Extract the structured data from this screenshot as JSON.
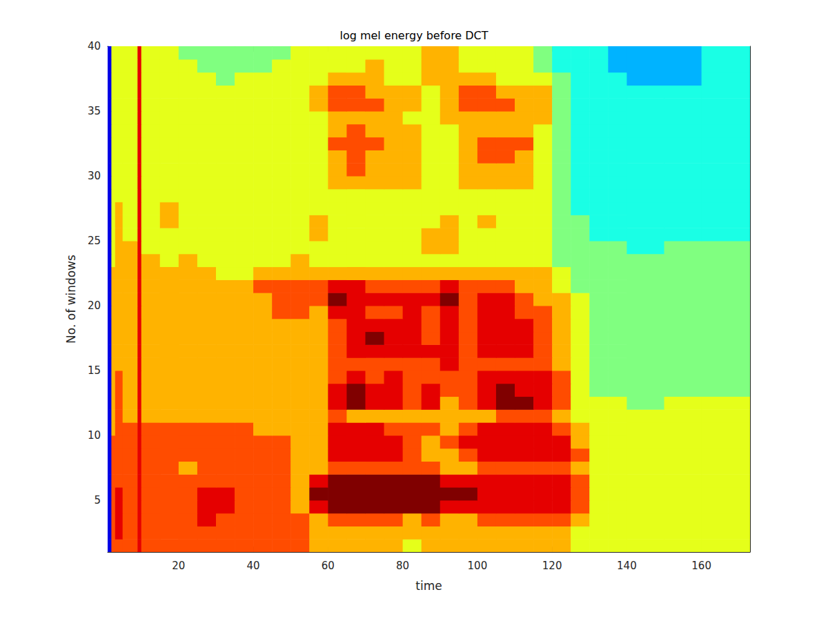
{
  "chart_data": {
    "type": "heatmap",
    "title": "log mel energy before DCT",
    "x_label": "time",
    "y_label": "No. of windows",
    "color": "jet",
    "xlim": [
      1,
      173
    ],
    "ylim": [
      1,
      40
    ],
    "xticks": [
      20,
      40,
      60,
      80,
      100,
      120,
      140,
      160
    ],
    "yticks": [
      5,
      10,
      15,
      20,
      25,
      30,
      35,
      40
    ],
    "color_range": [
      0,
      10
    ],
    "x_edges": [
      1,
      2,
      3,
      5,
      9,
      10,
      15,
      20,
      25,
      30,
      35,
      40,
      45,
      50,
      55,
      60,
      65,
      70,
      75,
      80,
      85,
      90,
      95,
      100,
      105,
      110,
      115,
      120,
      125,
      130,
      135,
      140,
      150,
      160,
      173
    ],
    "y_edges": [
      1,
      2,
      3,
      4,
      5,
      6,
      7,
      8,
      9,
      10,
      11,
      12,
      13,
      14,
      15,
      16,
      17,
      18,
      19,
      20,
      21,
      22,
      23,
      24,
      25,
      26,
      27,
      28,
      29,
      30,
      31,
      32,
      33,
      34,
      35,
      36,
      37,
      38,
      39,
      40
    ],
    "cells": [
      [
        1,
        8,
        8,
        8,
        9,
        8,
        8,
        8,
        8,
        8,
        8,
        8,
        8,
        8,
        7,
        7,
        7,
        7,
        7,
        6,
        7,
        7,
        7,
        7,
        7,
        7,
        7,
        7,
        6,
        6,
        6,
        6,
        6,
        6
      ],
      [
        1,
        8,
        9,
        8,
        9,
        8,
        8,
        8,
        8,
        8,
        8,
        8,
        8,
        8,
        7,
        7,
        7,
        7,
        7,
        7,
        7,
        7,
        7,
        7,
        7,
        7,
        7,
        7,
        6,
        6,
        6,
        6,
        6,
        6
      ],
      [
        1,
        8,
        9,
        8,
        9,
        8,
        8,
        8,
        9,
        8,
        8,
        8,
        8,
        8,
        7,
        8,
        8,
        8,
        8,
        7,
        8,
        7,
        7,
        8,
        8,
        8,
        8,
        8,
        7,
        6,
        6,
        6,
        6,
        6
      ],
      [
        1,
        8,
        9,
        8,
        9,
        8,
        8,
        8,
        9,
        9,
        8,
        8,
        8,
        7,
        9,
        10,
        10,
        10,
        10,
        10,
        10,
        9,
        9,
        9,
        9,
        9,
        9,
        9,
        8,
        6,
        6,
        6,
        6,
        6
      ],
      [
        1,
        8,
        9,
        8,
        9,
        8,
        8,
        8,
        9,
        9,
        8,
        8,
        8,
        7,
        10,
        10,
        10,
        10,
        10,
        10,
        10,
        10,
        10,
        9,
        9,
        9,
        9,
        9,
        8,
        6,
        6,
        6,
        6,
        6
      ],
      [
        1,
        8,
        8,
        8,
        9,
        8,
        8,
        8,
        8,
        8,
        8,
        8,
        8,
        7,
        9,
        10,
        10,
        10,
        10,
        10,
        10,
        9,
        9,
        9,
        9,
        9,
        9,
        9,
        8,
        6,
        6,
        6,
        6,
        6
      ],
      [
        1,
        8,
        8,
        8,
        9,
        8,
        8,
        7,
        8,
        8,
        8,
        8,
        8,
        7,
        7,
        8,
        8,
        8,
        8,
        8,
        8,
        7,
        7,
        8,
        8,
        8,
        8,
        8,
        7,
        6,
        6,
        6,
        6,
        6
      ],
      [
        1,
        8,
        8,
        8,
        9,
        8,
        8,
        8,
        8,
        8,
        8,
        8,
        8,
        7,
        7,
        9,
        9,
        9,
        9,
        8,
        7,
        7,
        8,
        9,
        9,
        9,
        9,
        9,
        8,
        6,
        6,
        6,
        6,
        6
      ],
      [
        1,
        8,
        8,
        8,
        9,
        8,
        8,
        8,
        8,
        8,
        8,
        8,
        8,
        7,
        7,
        9,
        9,
        9,
        9,
        8,
        7,
        8,
        9,
        9,
        9,
        9,
        9,
        9,
        7,
        6,
        6,
        6,
        6,
        6
      ],
      [
        1,
        7,
        8,
        8,
        9,
        8,
        8,
        8,
        8,
        8,
        8,
        7,
        7,
        7,
        7,
        9,
        9,
        9,
        8,
        8,
        8,
        7,
        8,
        9,
        9,
        9,
        9,
        8,
        7,
        6,
        6,
        6,
        6,
        6
      ],
      [
        1,
        7,
        8,
        7,
        9,
        7,
        7,
        7,
        7,
        7,
        7,
        7,
        7,
        7,
        7,
        8,
        7,
        7,
        7,
        7,
        7,
        7,
        7,
        7,
        8,
        8,
        8,
        7,
        6,
        6,
        6,
        6,
        6,
        6
      ],
      [
        1,
        7,
        8,
        7,
        9,
        7,
        7,
        7,
        7,
        7,
        7,
        7,
        7,
        7,
        7,
        9,
        10,
        9,
        9,
        8,
        9,
        7,
        8,
        9,
        10,
        10,
        9,
        8,
        6,
        6,
        6,
        5,
        6,
        6
      ],
      [
        1,
        7,
        8,
        7,
        9,
        7,
        7,
        7,
        7,
        7,
        7,
        7,
        7,
        7,
        7,
        9,
        10,
        9,
        9,
        8,
        9,
        8,
        8,
        9,
        10,
        9,
        9,
        8,
        6,
        5,
        5,
        5,
        5,
        5
      ],
      [
        1,
        7,
        8,
        7,
        9,
        7,
        7,
        7,
        7,
        7,
        7,
        7,
        7,
        7,
        7,
        8,
        9,
        8,
        9,
        8,
        8,
        8,
        8,
        9,
        9,
        9,
        9,
        8,
        6,
        5,
        5,
        5,
        5,
        5
      ],
      [
        1,
        7,
        7,
        7,
        9,
        7,
        7,
        7,
        7,
        7,
        7,
        7,
        7,
        7,
        7,
        8,
        8,
        8,
        8,
        8,
        8,
        9,
        8,
        8,
        8,
        8,
        8,
        7,
        6,
        5,
        5,
        5,
        5,
        5
      ],
      [
        1,
        7,
        7,
        7,
        9,
        7,
        7,
        7,
        7,
        7,
        7,
        7,
        7,
        7,
        7,
        8,
        9,
        9,
        9,
        9,
        9,
        9,
        8,
        9,
        9,
        9,
        8,
        7,
        6,
        5,
        5,
        5,
        5,
        5
      ],
      [
        1,
        7,
        7,
        7,
        9,
        7,
        7,
        7,
        7,
        7,
        7,
        7,
        7,
        7,
        7,
        8,
        9,
        10,
        9,
        9,
        8,
        9,
        8,
        9,
        9,
        9,
        8,
        7,
        6,
        5,
        5,
        5,
        5,
        5
      ],
      [
        1,
        7,
        7,
        7,
        9,
        7,
        7,
        7,
        7,
        7,
        7,
        7,
        7,
        7,
        7,
        8,
        9,
        9,
        9,
        9,
        8,
        9,
        8,
        9,
        9,
        9,
        8,
        7,
        6,
        5,
        5,
        5,
        5,
        5
      ],
      [
        1,
        7,
        7,
        7,
        9,
        7,
        7,
        7,
        7,
        7,
        7,
        7,
        8,
        8,
        7,
        9,
        9,
        8,
        8,
        9,
        8,
        9,
        8,
        9,
        9,
        8,
        8,
        7,
        6,
        5,
        5,
        5,
        5,
        5
      ],
      [
        1,
        7,
        7,
        7,
        9,
        7,
        7,
        7,
        7,
        7,
        7,
        7,
        8,
        8,
        8,
        10,
        9,
        9,
        9,
        9,
        9,
        10,
        8,
        9,
        9,
        8,
        7,
        7,
        6,
        5,
        5,
        5,
        5,
        5
      ],
      [
        1,
        7,
        7,
        7,
        9,
        7,
        7,
        7,
        7,
        7,
        7,
        8,
        8,
        8,
        8,
        9,
        9,
        8,
        8,
        8,
        8,
        9,
        8,
        8,
        8,
        7,
        7,
        6,
        5,
        5,
        5,
        5,
        5,
        5
      ],
      [
        1,
        7,
        7,
        7,
        9,
        7,
        7,
        7,
        7,
        6,
        6,
        7,
        7,
        7,
        7,
        7,
        7,
        7,
        7,
        7,
        7,
        7,
        7,
        7,
        7,
        7,
        7,
        6,
        5,
        5,
        5,
        5,
        5,
        5
      ],
      [
        1,
        6,
        7,
        7,
        9,
        7,
        6,
        7,
        6,
        6,
        6,
        6,
        6,
        7,
        6,
        6,
        6,
        6,
        6,
        6,
        6,
        6,
        6,
        6,
        6,
        6,
        6,
        5,
        5,
        5,
        5,
        5,
        5,
        5
      ],
      [
        1,
        6,
        7,
        7,
        9,
        6,
        6,
        6,
        6,
        6,
        6,
        6,
        6,
        6,
        6,
        6,
        6,
        6,
        6,
        6,
        7,
        7,
        6,
        6,
        6,
        6,
        6,
        5,
        5,
        5,
        5,
        4,
        5,
        5
      ],
      [
        1,
        6,
        7,
        6,
        9,
        6,
        6,
        6,
        6,
        6,
        6,
        6,
        6,
        6,
        7,
        6,
        6,
        6,
        6,
        6,
        7,
        7,
        6,
        6,
        6,
        6,
        6,
        5,
        5,
        4,
        4,
        4,
        4,
        4
      ],
      [
        1,
        6,
        7,
        6,
        9,
        6,
        7,
        6,
        6,
        6,
        6,
        6,
        6,
        6,
        7,
        6,
        6,
        6,
        6,
        6,
        6,
        7,
        6,
        7,
        6,
        6,
        6,
        5,
        5,
        4,
        4,
        4,
        4,
        4
      ],
      [
        1,
        6,
        7,
        6,
        9,
        6,
        7,
        6,
        6,
        6,
        6,
        6,
        6,
        6,
        6,
        6,
        6,
        6,
        6,
        6,
        6,
        6,
        6,
        6,
        6,
        6,
        6,
        5,
        4,
        4,
        4,
        4,
        4,
        4
      ],
      [
        1,
        6,
        6,
        6,
        9,
        6,
        6,
        6,
        6,
        6,
        6,
        6,
        6,
        6,
        6,
        6,
        6,
        6,
        6,
        6,
        6,
        6,
        6,
        6,
        6,
        6,
        6,
        5,
        4,
        4,
        4,
        4,
        4,
        4
      ],
      [
        1,
        6,
        6,
        6,
        9,
        6,
        6,
        6,
        6,
        6,
        6,
        6,
        6,
        6,
        6,
        7,
        7,
        7,
        7,
        7,
        6,
        6,
        7,
        7,
        7,
        7,
        6,
        5,
        4,
        4,
        4,
        4,
        4,
        4
      ],
      [
        1,
        6,
        6,
        6,
        9,
        6,
        6,
        6,
        6,
        6,
        6,
        6,
        6,
        6,
        6,
        7,
        8,
        7,
        7,
        7,
        6,
        6,
        7,
        7,
        7,
        7,
        6,
        5,
        4,
        4,
        4,
        4,
        4,
        4
      ],
      [
        1,
        6,
        6,
        6,
        9,
        6,
        6,
        6,
        6,
        6,
        6,
        6,
        6,
        6,
        6,
        7,
        8,
        7,
        7,
        7,
        6,
        6,
        7,
        8,
        8,
        7,
        6,
        5,
        4,
        4,
        4,
        4,
        4,
        4
      ],
      [
        1,
        6,
        6,
        6,
        9,
        6,
        6,
        6,
        6,
        6,
        6,
        6,
        6,
        6,
        6,
        8,
        8,
        8,
        7,
        7,
        6,
        6,
        7,
        8,
        8,
        8,
        6,
        5,
        4,
        4,
        4,
        4,
        4,
        4
      ],
      [
        1,
        6,
        6,
        6,
        9,
        6,
        6,
        6,
        6,
        6,
        6,
        6,
        6,
        6,
        6,
        7,
        8,
        7,
        7,
        7,
        6,
        6,
        7,
        7,
        7,
        7,
        6,
        5,
        4,
        4,
        4,
        4,
        4,
        4
      ],
      [
        1,
        6,
        6,
        6,
        9,
        6,
        6,
        6,
        6,
        6,
        6,
        6,
        6,
        6,
        6,
        7,
        7,
        7,
        7,
        6,
        6,
        7,
        7,
        7,
        7,
        7,
        7,
        5,
        4,
        4,
        4,
        4,
        4,
        4
      ],
      [
        1,
        6,
        6,
        6,
        9,
        6,
        6,
        6,
        6,
        6,
        6,
        6,
        6,
        6,
        7,
        8,
        8,
        8,
        7,
        7,
        6,
        7,
        8,
        8,
        8,
        7,
        7,
        5,
        4,
        4,
        4,
        4,
        4,
        4
      ],
      [
        1,
        6,
        6,
        6,
        9,
        6,
        6,
        6,
        6,
        6,
        6,
        6,
        6,
        6,
        7,
        8,
        8,
        7,
        7,
        7,
        6,
        7,
        8,
        8,
        7,
        7,
        7,
        5,
        4,
        4,
        4,
        4,
        4,
        4
      ],
      [
        1,
        6,
        6,
        6,
        9,
        6,
        6,
        6,
        6,
        5,
        6,
        6,
        6,
        6,
        6,
        7,
        7,
        7,
        6,
        6,
        7,
        7,
        7,
        7,
        6,
        6,
        6,
        5,
        4,
        4,
        4,
        3,
        3,
        4
      ],
      [
        1,
        6,
        6,
        6,
        9,
        6,
        6,
        6,
        5,
        5,
        5,
        5,
        6,
        6,
        6,
        6,
        6,
        7,
        6,
        6,
        7,
        7,
        6,
        6,
        6,
        6,
        5,
        4,
        4,
        4,
        3,
        3,
        3,
        4
      ],
      [
        1,
        6,
        6,
        6,
        9,
        6,
        6,
        5,
        5,
        5,
        5,
        5,
        5,
        6,
        6,
        6,
        6,
        6,
        6,
        6,
        7,
        7,
        6,
        6,
        6,
        6,
        5,
        4,
        4,
        4,
        3,
        3,
        3,
        4
      ]
    ]
  }
}
